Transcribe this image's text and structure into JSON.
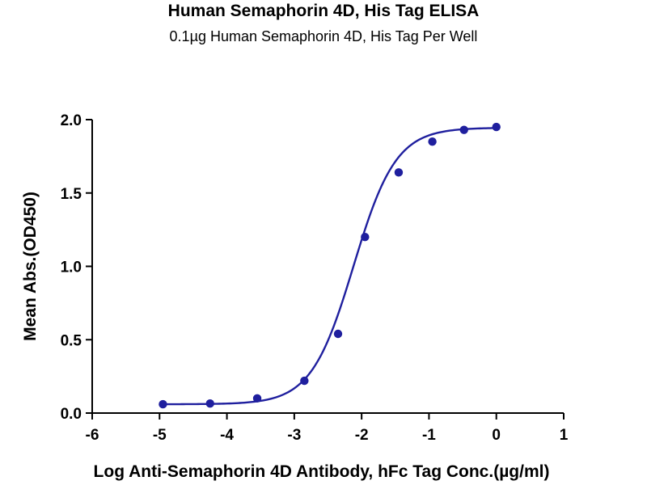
{
  "chart_data": {
    "type": "scatter",
    "title": "Human Semaphorin 4D, His Tag ELISA",
    "subtitle": "0.1µg Human Semaphorin 4D,  His Tag Per Well",
    "xlabel": "Log Anti-Semaphorin 4D Antibody, hFc Tag Conc.(µg/ml)",
    "ylabel": "Mean Abs.(OD450)",
    "xlim": [
      -6,
      1
    ],
    "ylim": [
      0,
      2.0
    ],
    "xticks": [
      "-6",
      "-5",
      "-4",
      "-3",
      "-2",
      "-1",
      "0",
      "1"
    ],
    "yticks": [
      "0.0",
      "0.5",
      "1.0",
      "1.5",
      "2.0"
    ],
    "grid": false,
    "series": [
      {
        "color": "#1f1f9e",
        "x": [
          -4.95,
          -4.25,
          -3.55,
          -2.85,
          -2.35,
          -1.95,
          -1.45,
          -0.95,
          -0.48,
          0.0
        ],
        "y": [
          0.06,
          0.065,
          0.1,
          0.22,
          0.54,
          1.2,
          1.64,
          1.85,
          1.93,
          1.95
        ],
        "fit": {
          "model": "4PL",
          "bottom": 0.06,
          "top": 1.945,
          "logEC50": -2.12,
          "hill": 1.38
        }
      }
    ]
  }
}
